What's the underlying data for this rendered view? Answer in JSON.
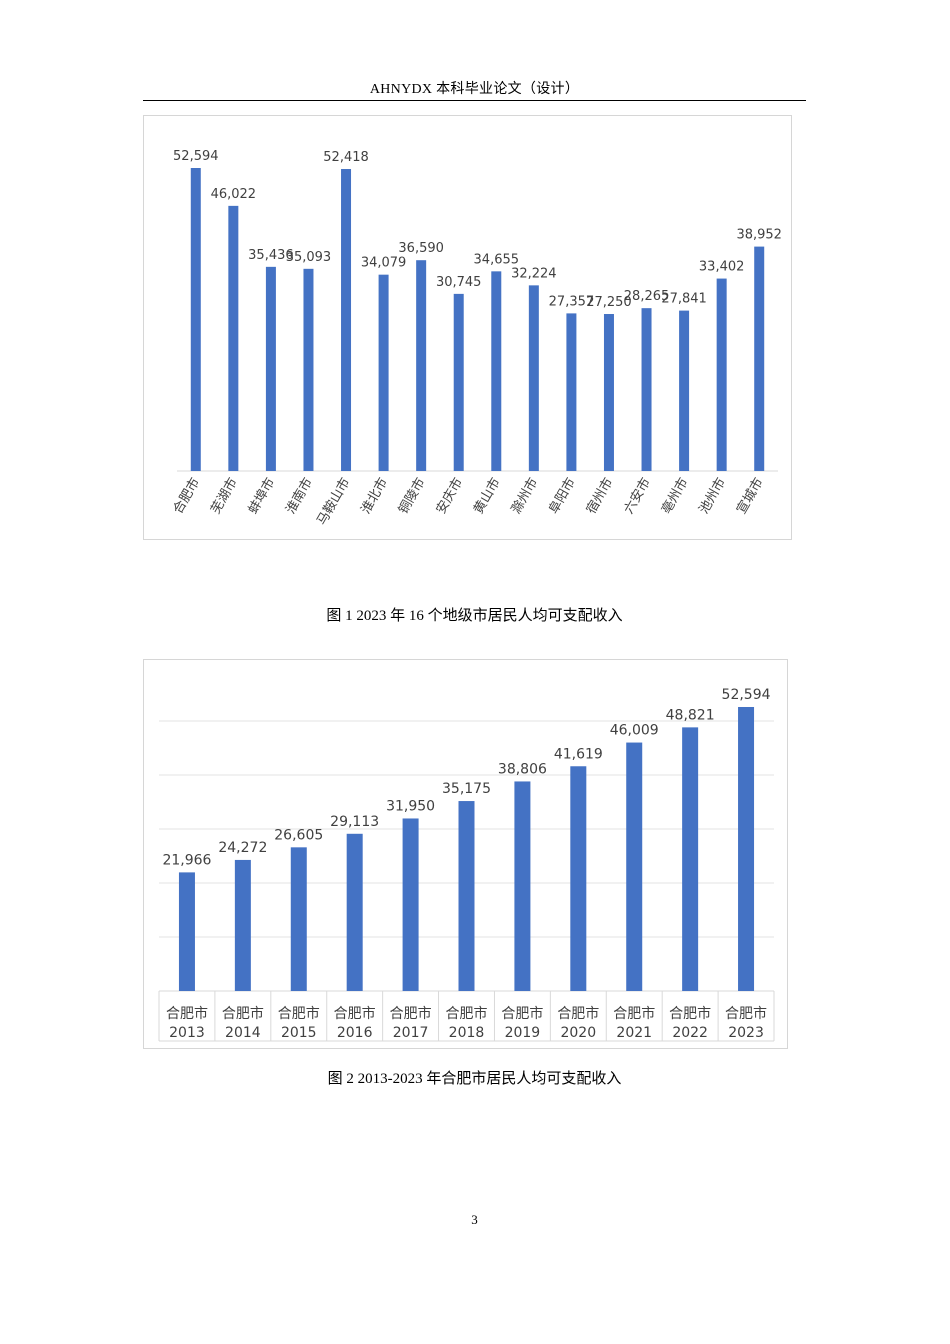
{
  "header": {
    "title": "AHNYDX 本科毕业论文（设计）"
  },
  "figure1": {
    "caption": "图 1  2023 年 16 个地级市居民人均可支配收入"
  },
  "figure2": {
    "caption": "图 2  2013-2023 年合肥市居民人均可支配收入"
  },
  "page_number": "3",
  "chart_data": [
    {
      "type": "bar",
      "title": "",
      "xlabel": "",
      "ylabel": "",
      "categories": [
        "合肥市",
        "芜湖市",
        "蚌埠市",
        "淮南市",
        "马鞍山市",
        "淮北市",
        "铜陵市",
        "安庆市",
        "黄山市",
        "滁州市",
        "阜阳市",
        "宿州市",
        "六安市",
        "亳州市",
        "池州市",
        "宣城市"
      ],
      "values": [
        52594,
        46022,
        35436,
        35093,
        52418,
        34079,
        36590,
        30745,
        34655,
        32224,
        27357,
        27250,
        28265,
        27841,
        33402,
        38952
      ],
      "data_labels": [
        "52,594",
        "46,022",
        "35,436",
        "35,093",
        "52,418",
        "34,079",
        "36,590",
        "30,745",
        "34,655",
        "32,224",
        "27,357",
        "27,250",
        "28,265",
        "27,841",
        "33,402",
        "38,952"
      ],
      "ylim": [
        0,
        52594
      ],
      "grid": false,
      "legend": "none",
      "bar_color": "#4472C4"
    },
    {
      "type": "bar",
      "title": "",
      "xlabel": "",
      "ylabel": "",
      "categories": [
        [
          "合肥市",
          "2013"
        ],
        [
          "合肥市",
          "2014"
        ],
        [
          "合肥市",
          "2015"
        ],
        [
          "合肥市",
          "2016"
        ],
        [
          "合肥市",
          "2017"
        ],
        [
          "合肥市",
          "2018"
        ],
        [
          "合肥市",
          "2019"
        ],
        [
          "合肥市",
          "2020"
        ],
        [
          "合肥市",
          "2021"
        ],
        [
          "合肥市",
          "2022"
        ],
        [
          "合肥市",
          "2023"
        ]
      ],
      "values": [
        21966,
        24272,
        26605,
        29113,
        31950,
        35175,
        38806,
        41619,
        46009,
        48821,
        52594
      ],
      "data_labels": [
        "21,966",
        "24,272",
        "26,605",
        "29,113",
        "31,950",
        "35,175",
        "38,806",
        "41,619",
        "46,009",
        "48,821",
        "52,594"
      ],
      "ylim": [
        0,
        50000
      ],
      "grid": true,
      "legend": "none",
      "bar_color": "#4472C4"
    }
  ]
}
